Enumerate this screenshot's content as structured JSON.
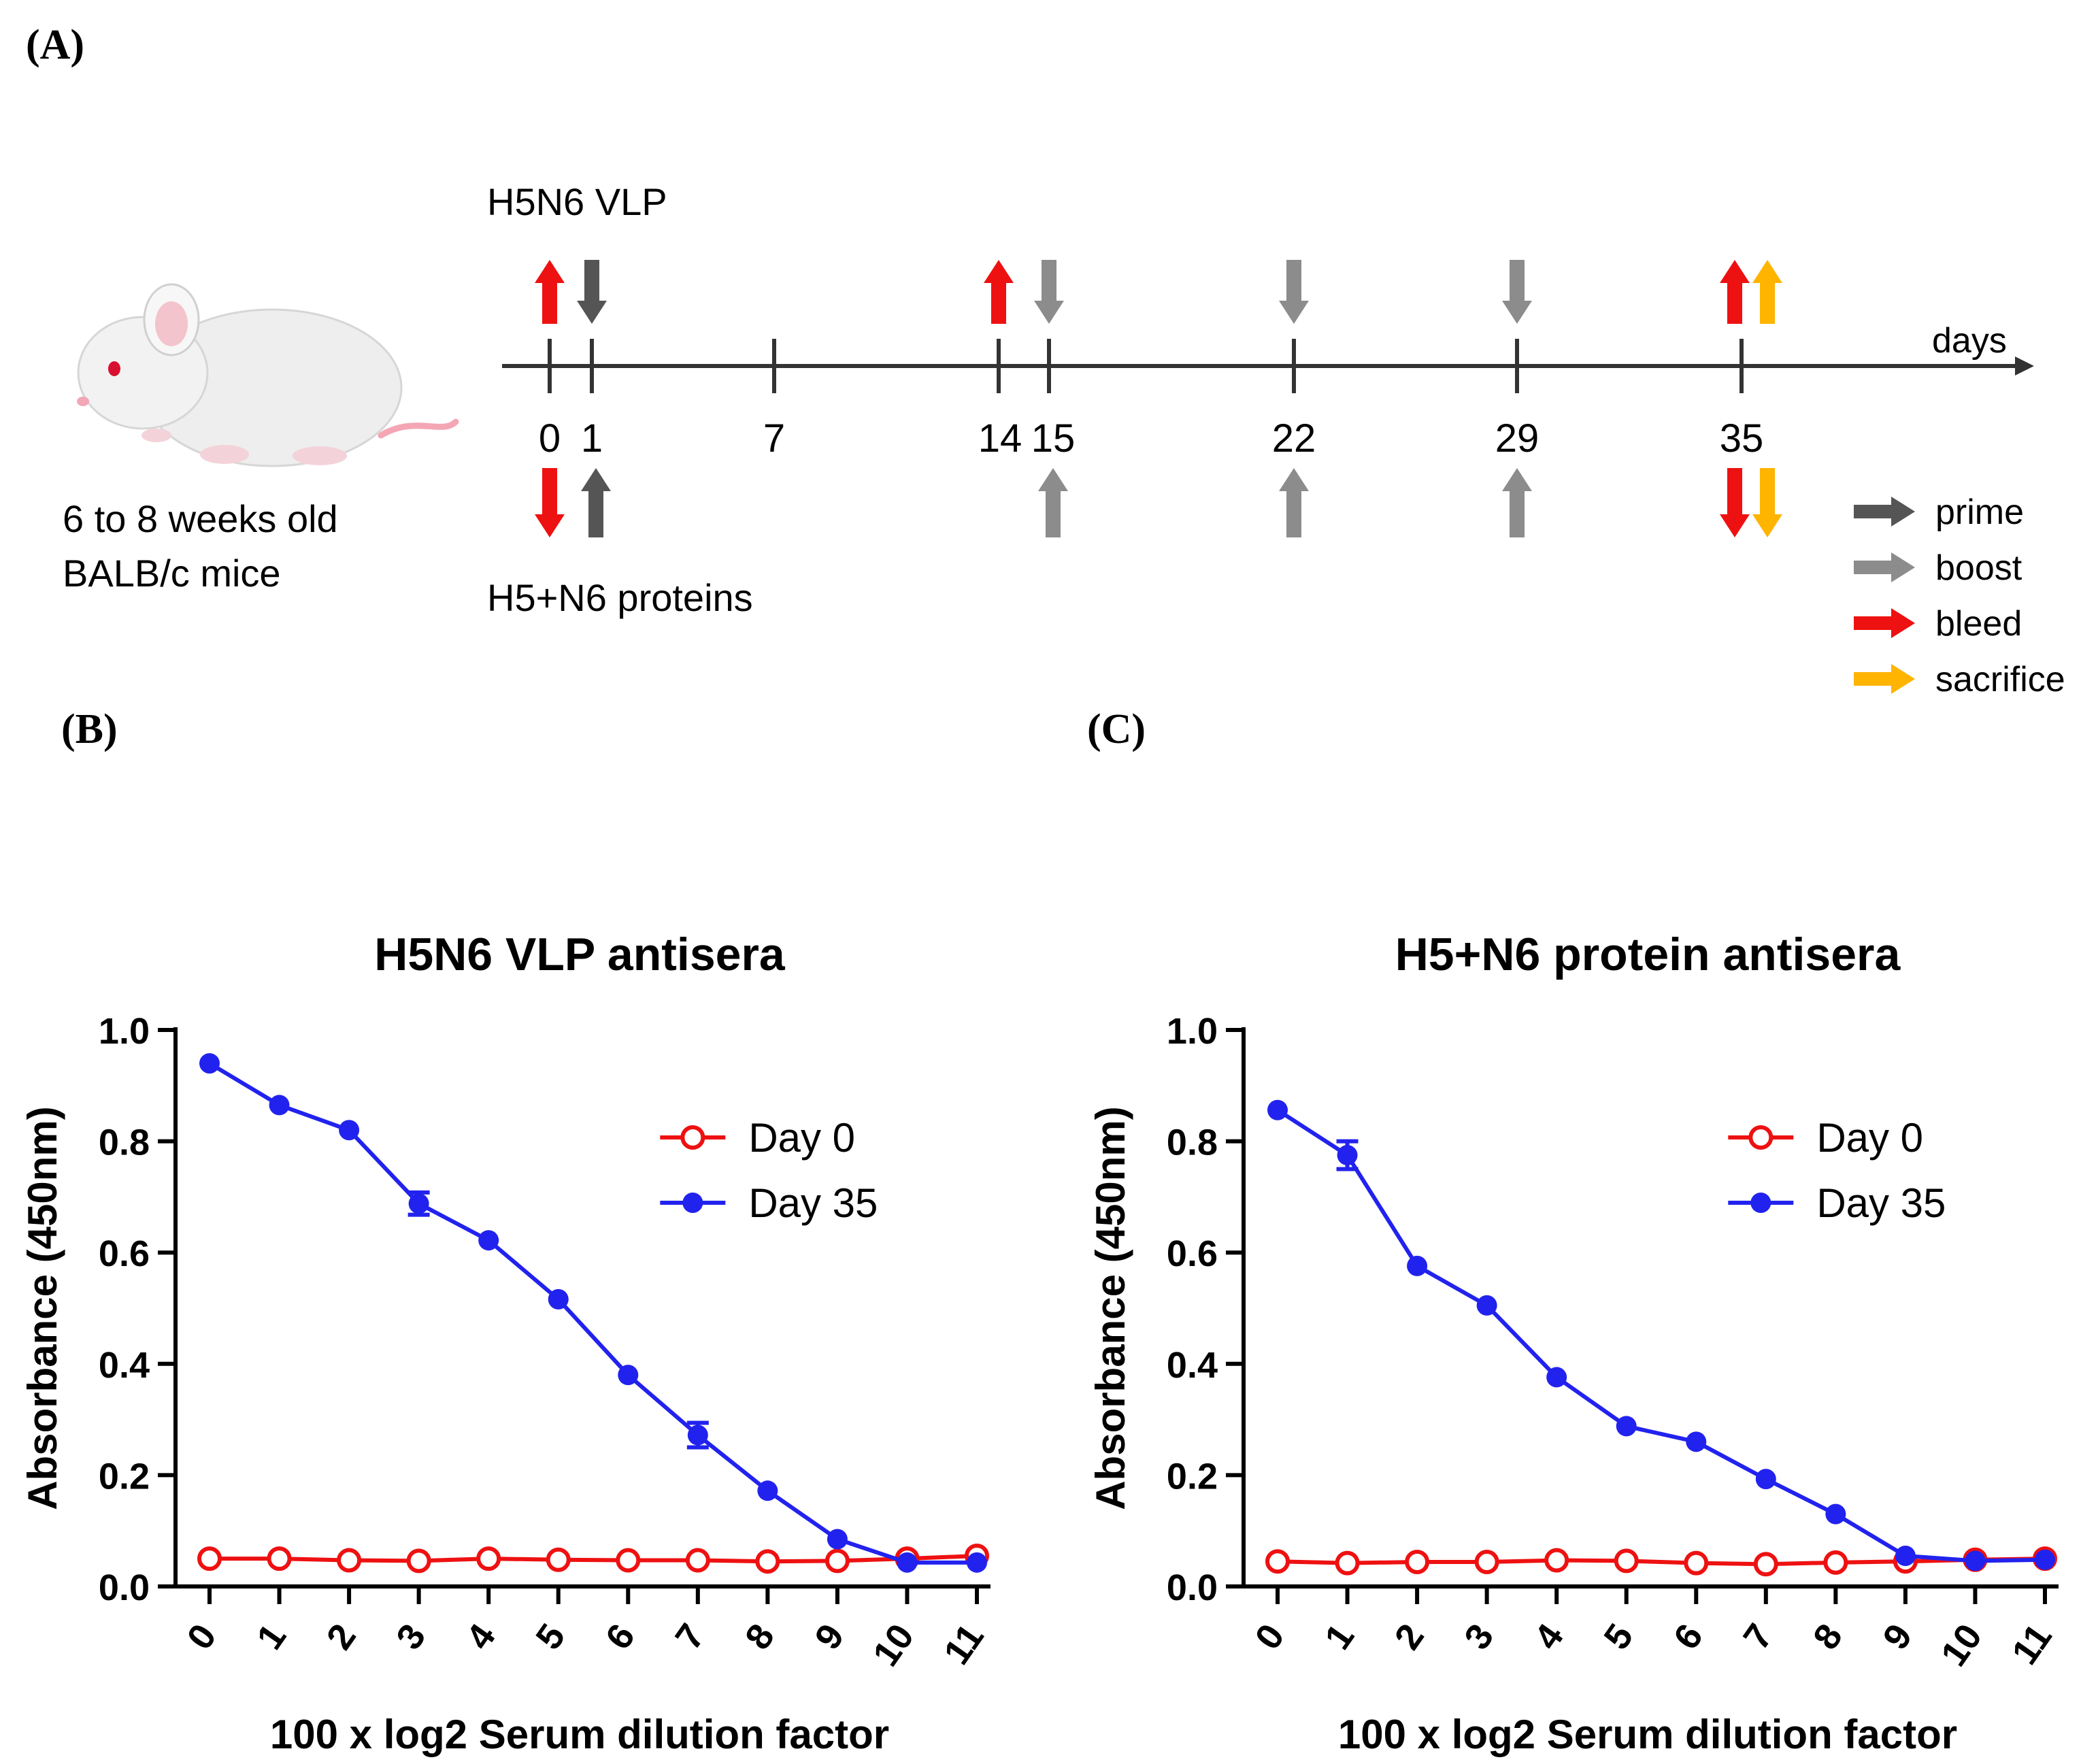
{
  "panels": {
    "a": "(A)",
    "b": "(B)",
    "c": "(C)"
  },
  "schematic": {
    "mouse_caption": [
      "6 to 8 weeks old",
      "BALB/c mice"
    ],
    "top_group": "H5N6 VLP",
    "bottom_group": "H5+N6 proteins",
    "axis_unit": "days",
    "day_ticks": [
      "0",
      "1",
      "7",
      "14",
      "15",
      "22",
      "29",
      "35"
    ],
    "events_top": [
      {
        "day": 0,
        "type": "bleed",
        "dir": "up"
      },
      {
        "day": 1,
        "type": "prime",
        "dir": "down"
      },
      {
        "day": 14,
        "type": "bleed",
        "dir": "up"
      },
      {
        "day": 15,
        "type": "boost",
        "dir": "down"
      },
      {
        "day": 22,
        "type": "boost",
        "dir": "down"
      },
      {
        "day": 29,
        "type": "boost",
        "dir": "down"
      },
      {
        "day": 35,
        "type": "bleed",
        "dir": "up"
      },
      {
        "day": 35,
        "type": "sacrifice",
        "dir": "up"
      }
    ],
    "events_bottom": [
      {
        "day": 0,
        "type": "bleed",
        "dir": "down"
      },
      {
        "day": 1,
        "type": "prime",
        "dir": "up"
      },
      {
        "day": 15,
        "type": "boost",
        "dir": "up"
      },
      {
        "day": 22,
        "type": "boost",
        "dir": "up"
      },
      {
        "day": 29,
        "type": "boost",
        "dir": "up"
      },
      {
        "day": 35,
        "type": "bleed",
        "dir": "down"
      },
      {
        "day": 35,
        "type": "sacrifice",
        "dir": "down"
      }
    ],
    "legend": [
      {
        "key": "prime",
        "label": "prime"
      },
      {
        "key": "boost",
        "label": "boost"
      },
      {
        "key": "bleed",
        "label": "bleed"
      },
      {
        "key": "sacrifice",
        "label": "sacrifice"
      }
    ],
    "colors": {
      "prime": "#555555",
      "boost": "#8c8c8c",
      "bleed": "#ee1111",
      "sacrifice": "#ffb400",
      "axis": "#333333"
    }
  },
  "chart_data": [
    {
      "panel": "B",
      "type": "line",
      "title": "H5N6 VLP antisera",
      "xlabel": "100 x log2 Serum dilution factor",
      "ylabel": "Absorbance (450nm)",
      "x": [
        0,
        1,
        2,
        3,
        4,
        5,
        6,
        7,
        8,
        9,
        10,
        11
      ],
      "x_tick_labels": [
        "0",
        "1",
        "2",
        "3",
        "4",
        "5",
        "6",
        "7",
        "8",
        "9",
        "10",
        "11"
      ],
      "ylim": [
        0,
        1.0
      ],
      "y_tick_labels": [
        "0.0",
        "0.2",
        "0.4",
        "0.6",
        "0.8",
        "1.0"
      ],
      "legend_position": "top-right",
      "series": [
        {
          "name": "Day 0",
          "color": "#ee1111",
          "marker": "open-circle",
          "values": [
            0.05,
            0.05,
            0.047,
            0.046,
            0.05,
            0.048,
            0.047,
            0.047,
            0.045,
            0.046,
            0.05,
            0.055
          ],
          "error": [
            0,
            0,
            0,
            0,
            0,
            0,
            0,
            0,
            0,
            0,
            0,
            0
          ]
        },
        {
          "name": "Day 35",
          "color": "#2222ee",
          "marker": "filled-circle",
          "values": [
            0.94,
            0.865,
            0.82,
            0.688,
            0.622,
            0.516,
            0.38,
            0.272,
            0.172,
            0.085,
            0.043,
            0.043
          ],
          "error": [
            0,
            0,
            0,
            0.02,
            0,
            0,
            0,
            0.022,
            0,
            0,
            0,
            0
          ]
        }
      ]
    },
    {
      "panel": "C",
      "type": "line",
      "title": "H5+N6 protein antisera",
      "xlabel": "100 x log2 Serum dilution factor",
      "ylabel": "Absorbance (450nm)",
      "x": [
        0,
        1,
        2,
        3,
        4,
        5,
        6,
        7,
        8,
        9,
        10,
        11
      ],
      "x_tick_labels": [
        "0",
        "1",
        "2",
        "3",
        "4",
        "5",
        "6",
        "7",
        "8",
        "9",
        "10",
        "11"
      ],
      "ylim": [
        0,
        1.0
      ],
      "y_tick_labels": [
        "0.0",
        "0.2",
        "0.4",
        "0.6",
        "0.8",
        "1.0"
      ],
      "legend_position": "top-right",
      "series": [
        {
          "name": "Day 0",
          "color": "#ee1111",
          "marker": "open-circle",
          "values": [
            0.045,
            0.042,
            0.044,
            0.044,
            0.047,
            0.046,
            0.042,
            0.04,
            0.043,
            0.045,
            0.048,
            0.05
          ],
          "error": [
            0,
            0,
            0,
            0,
            0,
            0,
            0,
            0,
            0,
            0,
            0,
            0
          ]
        },
        {
          "name": "Day 35",
          "color": "#2222ee",
          "marker": "filled-circle",
          "values": [
            0.856,
            0.775,
            0.576,
            0.505,
            0.376,
            0.288,
            0.26,
            0.193,
            0.13,
            0.055,
            0.046,
            0.048
          ],
          "error": [
            0,
            0.025,
            0,
            0,
            0,
            0,
            0,
            0,
            0,
            0,
            0,
            0
          ]
        }
      ]
    }
  ]
}
